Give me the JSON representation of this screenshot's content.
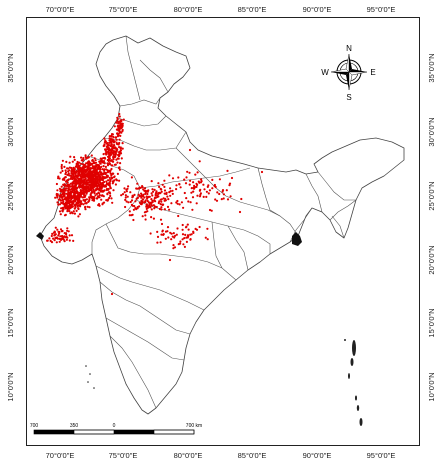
{
  "map": {
    "top_ticks": [
      "70°0'0\"E",
      "75°0'0\"E",
      "80°0'0\"E",
      "85°0'0\"E",
      "90°0'0\"E",
      "95°0'0\"E"
    ],
    "bottom_ticks": [
      "70°0'0\"E",
      "75°0'0\"E",
      "80°0'0\"E",
      "85°0'0\"E",
      "90°0'0\"E",
      "95°0'0\"E"
    ],
    "left_ticks": [
      "35°0'0\"N",
      "30°0'0\"N",
      "25°0'0\"N",
      "20°0'0\"N",
      "15°0'0\"N",
      "10°0'0\"N"
    ],
    "right_ticks": [
      "35°0'0\"N",
      "30°0'0\"N",
      "25°0'0\"N",
      "20°0'0\"N",
      "15°0'0\"N",
      "10°0'0\"N"
    ],
    "compass": {
      "n": "N",
      "s": "S",
      "e": "E",
      "w": "W"
    },
    "scale_bar": {
      "labels": [
        "700",
        "350",
        "0",
        "700 km"
      ]
    },
    "colors": {
      "points": "#e00000",
      "boundary": "#444444",
      "frame": "#222222"
    }
  }
}
